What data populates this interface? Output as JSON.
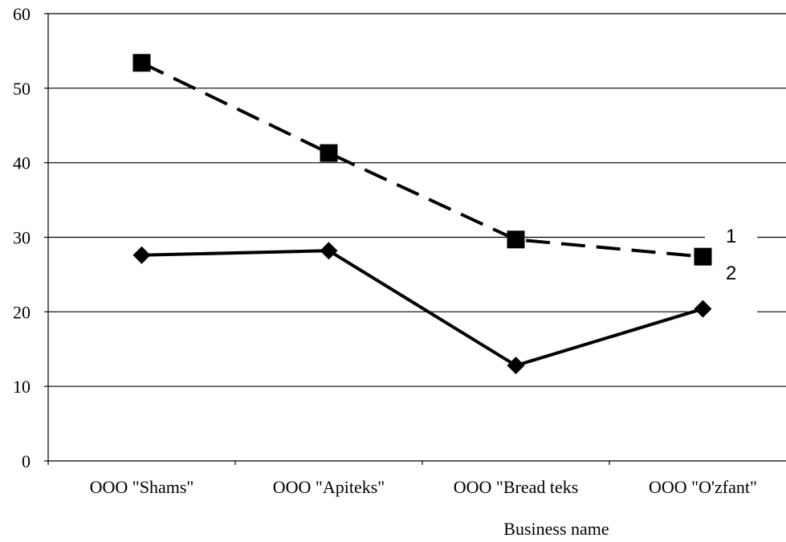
{
  "chart_data": {
    "type": "line",
    "title": "",
    "xlabel": "Business name",
    "ylabel": "",
    "categories": [
      "OOO \"Shams\"",
      "OOO \"Apiteks\"",
      "OOO \"Bread teks",
      "OOO \"O'zfant\""
    ],
    "ylim": [
      0,
      60
    ],
    "yticks": [
      "0",
      "10",
      "20",
      "30",
      "40",
      "50",
      "60"
    ],
    "grid": true,
    "series": [
      {
        "name": "1",
        "values": [
          53.4,
          41.3,
          29.7,
          27.4
        ],
        "style": "dashed",
        "marker": "square",
        "color": "#000000"
      },
      {
        "name": "2",
        "values": [
          27.6,
          28.2,
          12.8,
          20.4
        ],
        "style": "solid",
        "marker": "diamond",
        "color": "#000000"
      }
    ]
  }
}
